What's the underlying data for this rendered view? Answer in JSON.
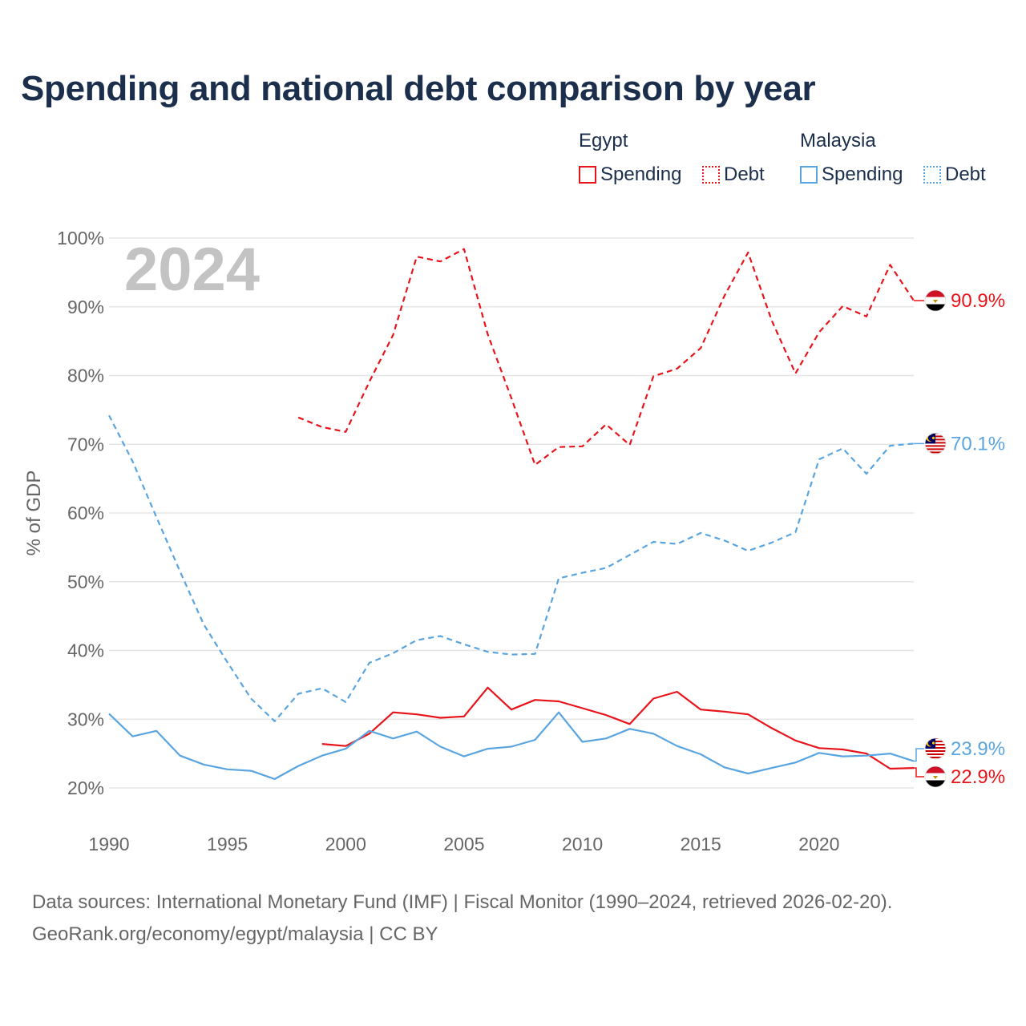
{
  "title": "Spending and national debt comparison by year",
  "legend": [
    {
      "group": "Egypt",
      "color": "#e8141b",
      "items": [
        {
          "label": "Spending",
          "style": "solid"
        },
        {
          "label": "Debt",
          "style": "dotted"
        }
      ]
    },
    {
      "group": "Malaysia",
      "color": "#5aa5e0",
      "items": [
        {
          "label": "Spending",
          "style": "solid"
        },
        {
          "label": "Debt",
          "style": "dotted"
        }
      ]
    }
  ],
  "footer": {
    "line1": "Data sources: International Monetary Fund (IMF) | Fiscal Monitor (1990–2024, retrieved 2026-02-20).",
    "line2": "GeoRank.org/economy/egypt/malaysia | CC BY"
  },
  "chart_data": {
    "type": "line",
    "year_label": "2024",
    "ylabel": "% of GDP",
    "xlim": [
      1990,
      2024
    ],
    "ylim": [
      20,
      100
    ],
    "y_ticks": [
      {
        "value": 100,
        "label": "100%"
      },
      {
        "value": 90,
        "label": "90%"
      },
      {
        "value": 80,
        "label": "80%"
      },
      {
        "value": 70,
        "label": "70%"
      },
      {
        "value": 60,
        "label": "60%"
      },
      {
        "value": 50,
        "label": "50%"
      },
      {
        "value": 40,
        "label": "40%"
      },
      {
        "value": 30,
        "label": "30%"
      },
      {
        "value": 20,
        "label": "20%"
      }
    ],
    "x_ticks": [
      {
        "value": 1990,
        "label": "1990"
      },
      {
        "value": 1995,
        "label": "1995"
      },
      {
        "value": 2000,
        "label": "2000"
      },
      {
        "value": 2005,
        "label": "2005"
      },
      {
        "value": 2010,
        "label": "2010"
      },
      {
        "value": 2015,
        "label": "2015"
      },
      {
        "value": 2020,
        "label": "2020"
      }
    ],
    "series": [
      {
        "name": "Egypt Debt",
        "country": "egypt",
        "metric": "debt",
        "color": "#e8141b",
        "dashed": true,
        "end_label": "90.9%",
        "end_value": 90.9,
        "points": [
          [
            1998,
            73.9
          ],
          [
            1999,
            72.5
          ],
          [
            2000,
            71.8
          ],
          [
            2001,
            79.1
          ],
          [
            2002,
            85.9
          ],
          [
            2003,
            97.3
          ],
          [
            2004,
            96.6
          ],
          [
            2005,
            98.4
          ],
          [
            2006,
            86.0
          ],
          [
            2007,
            76.7
          ],
          [
            2008,
            67.0
          ],
          [
            2009,
            69.6
          ],
          [
            2010,
            69.7
          ],
          [
            2011,
            72.9
          ],
          [
            2012,
            69.9
          ],
          [
            2013,
            79.9
          ],
          [
            2014,
            81.0
          ],
          [
            2015,
            84.0
          ],
          [
            2016,
            91.6
          ],
          [
            2017,
            97.9
          ],
          [
            2018,
            88.0
          ],
          [
            2019,
            80.3
          ],
          [
            2020,
            86.3
          ],
          [
            2021,
            90.1
          ],
          [
            2022,
            88.6
          ],
          [
            2023,
            96.1
          ],
          [
            2024,
            90.9
          ]
        ]
      },
      {
        "name": "Malaysia Debt",
        "country": "malaysia",
        "metric": "debt",
        "color": "#5aa5e0",
        "dashed": true,
        "end_label": "70.1%",
        "end_value": 70.1,
        "points": [
          [
            1990,
            74.2
          ],
          [
            1991,
            67.5
          ],
          [
            1992,
            59.4
          ],
          [
            1993,
            51.5
          ],
          [
            1994,
            43.8
          ],
          [
            1995,
            38.3
          ],
          [
            1996,
            33.0
          ],
          [
            1997,
            29.7
          ],
          [
            1998,
            33.7
          ],
          [
            1999,
            34.5
          ],
          [
            2000,
            32.5
          ],
          [
            2001,
            38.2
          ],
          [
            2002,
            39.6
          ],
          [
            2003,
            41.5
          ],
          [
            2004,
            42.1
          ],
          [
            2005,
            40.9
          ],
          [
            2006,
            39.8
          ],
          [
            2007,
            39.4
          ],
          [
            2008,
            39.5
          ],
          [
            2009,
            50.5
          ],
          [
            2010,
            51.3
          ],
          [
            2011,
            52.0
          ],
          [
            2012,
            53.9
          ],
          [
            2013,
            55.8
          ],
          [
            2014,
            55.5
          ],
          [
            2015,
            57.1
          ],
          [
            2016,
            56.0
          ],
          [
            2017,
            54.5
          ],
          [
            2018,
            55.7
          ],
          [
            2019,
            57.2
          ],
          [
            2020,
            67.8
          ],
          [
            2021,
            69.4
          ],
          [
            2022,
            65.7
          ],
          [
            2023,
            69.8
          ],
          [
            2024,
            70.1
          ]
        ]
      },
      {
        "name": "Egypt Spending",
        "country": "egypt",
        "metric": "spending",
        "color": "#e8141b",
        "dashed": false,
        "end_label": "22.9%",
        "end_value": 22.9,
        "points": [
          [
            1999,
            26.4
          ],
          [
            2000,
            26.1
          ],
          [
            2001,
            27.9
          ],
          [
            2002,
            31.0
          ],
          [
            2003,
            30.7
          ],
          [
            2004,
            30.2
          ],
          [
            2005,
            30.4
          ],
          [
            2006,
            34.6
          ],
          [
            2007,
            31.4
          ],
          [
            2008,
            32.8
          ],
          [
            2009,
            32.6
          ],
          [
            2010,
            31.6
          ],
          [
            2011,
            30.6
          ],
          [
            2012,
            29.3
          ],
          [
            2013,
            33.0
          ],
          [
            2014,
            34.0
          ],
          [
            2015,
            31.4
          ],
          [
            2016,
            31.1
          ],
          [
            2017,
            30.7
          ],
          [
            2018,
            28.7
          ],
          [
            2019,
            26.9
          ],
          [
            2020,
            25.8
          ],
          [
            2021,
            25.6
          ],
          [
            2022,
            25.0
          ],
          [
            2023,
            22.8
          ],
          [
            2024,
            22.9
          ]
        ]
      },
      {
        "name": "Malaysia Spending",
        "country": "malaysia",
        "metric": "spending",
        "color": "#5aa5e0",
        "dashed": false,
        "end_label": "23.9%",
        "end_value": 23.9,
        "points": [
          [
            1990,
            30.8
          ],
          [
            1991,
            27.5
          ],
          [
            1992,
            28.3
          ],
          [
            1993,
            24.7
          ],
          [
            1994,
            23.4
          ],
          [
            1995,
            22.7
          ],
          [
            1996,
            22.5
          ],
          [
            1997,
            21.3
          ],
          [
            1998,
            23.2
          ],
          [
            1999,
            24.7
          ],
          [
            2000,
            25.7
          ],
          [
            2001,
            28.3
          ],
          [
            2002,
            27.2
          ],
          [
            2003,
            28.2
          ],
          [
            2004,
            26.0
          ],
          [
            2005,
            24.6
          ],
          [
            2006,
            25.7
          ],
          [
            2007,
            26.0
          ],
          [
            2008,
            27.0
          ],
          [
            2009,
            31.0
          ],
          [
            2010,
            26.7
          ],
          [
            2011,
            27.2
          ],
          [
            2012,
            28.6
          ],
          [
            2013,
            27.9
          ],
          [
            2014,
            26.1
          ],
          [
            2015,
            24.9
          ],
          [
            2016,
            23.0
          ],
          [
            2017,
            22.1
          ],
          [
            2018,
            22.9
          ],
          [
            2019,
            23.7
          ],
          [
            2020,
            25.1
          ],
          [
            2021,
            24.6
          ],
          [
            2022,
            24.7
          ],
          [
            2023,
            25.0
          ],
          [
            2024,
            23.9
          ]
        ]
      }
    ]
  }
}
